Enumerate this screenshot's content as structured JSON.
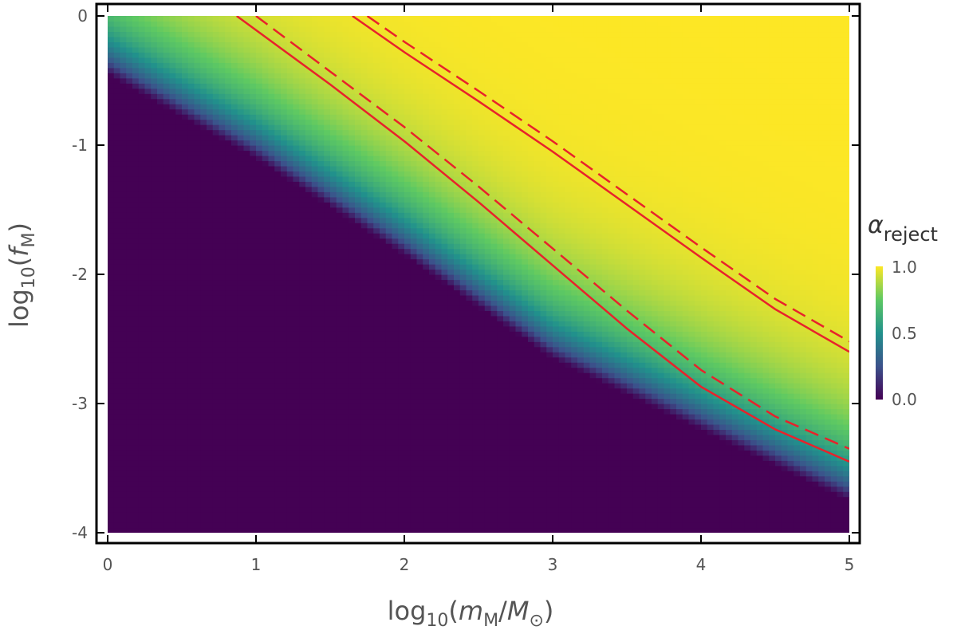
{
  "chart_data": {
    "type": "heatmap",
    "xlabel": {
      "prefix": "log",
      "sub": "10",
      "open": "(",
      "var_m": "m",
      "sub_m": "M",
      "slash": "/",
      "var_M": "M",
      "sub_sun": "⊙",
      "close": ")"
    },
    "ylabel": {
      "prefix": "log",
      "sub": "10",
      "open": "(",
      "var_f": "f",
      "sub_f": "M",
      "close": ")"
    },
    "xlim": [
      0,
      5
    ],
    "ylim": [
      -4,
      0
    ],
    "x_ticks": [
      "0",
      "1",
      "2",
      "3",
      "4",
      "5"
    ],
    "y_ticks": [
      "0",
      "-1",
      "-2",
      "-3",
      "-4"
    ],
    "colorbar": {
      "label_symbol": "α",
      "label_sub": "reject",
      "ticks": [
        "1.0",
        "0.5",
        "0.0"
      ],
      "range": [
        0,
        1
      ],
      "colormap": "viridis"
    },
    "field": {
      "description_free": true,
      "transition_center": [
        [
          0,
          -0.35
        ],
        [
          1,
          -1.0
        ],
        [
          2,
          -1.75
        ],
        [
          3,
          -2.55
        ],
        [
          4,
          -3.1
        ],
        [
          5,
          -3.65
        ]
      ],
      "transition_width": 0.1,
      "saturation_offset": 1.2
    },
    "lines": [
      {
        "style": "solid",
        "color": "#e8222b",
        "x": [
          0.87,
          1.5,
          2.0,
          2.5,
          3.0,
          3.5,
          4.0,
          4.5,
          5.0
        ],
        "y": [
          0.0,
          -0.53,
          -0.97,
          -1.44,
          -1.93,
          -2.42,
          -2.87,
          -3.2,
          -3.45
        ]
      },
      {
        "style": "dashed",
        "color": "#e8222b",
        "x": [
          1.0,
          1.5,
          2.0,
          2.5,
          3.0,
          3.5,
          4.0,
          4.5,
          5.0
        ],
        "y": [
          0.0,
          -0.43,
          -0.86,
          -1.32,
          -1.8,
          -2.28,
          -2.74,
          -3.1,
          -3.35
        ]
      },
      {
        "style": "solid",
        "color": "#e8222b",
        "x": [
          1.65,
          2.0,
          2.5,
          3.0,
          3.5,
          4.0,
          4.5,
          5.0
        ],
        "y": [
          0.0,
          -0.28,
          -0.66,
          -1.05,
          -1.46,
          -1.87,
          -2.27,
          -2.6
        ]
      },
      {
        "style": "dashed",
        "color": "#e8222b",
        "x": [
          1.75,
          2.0,
          2.5,
          3.0,
          3.5,
          4.0,
          4.5,
          5.0
        ],
        "y": [
          0.0,
          -0.2,
          -0.58,
          -0.97,
          -1.38,
          -1.79,
          -2.19,
          -2.52
        ]
      }
    ],
    "grid": false
  }
}
